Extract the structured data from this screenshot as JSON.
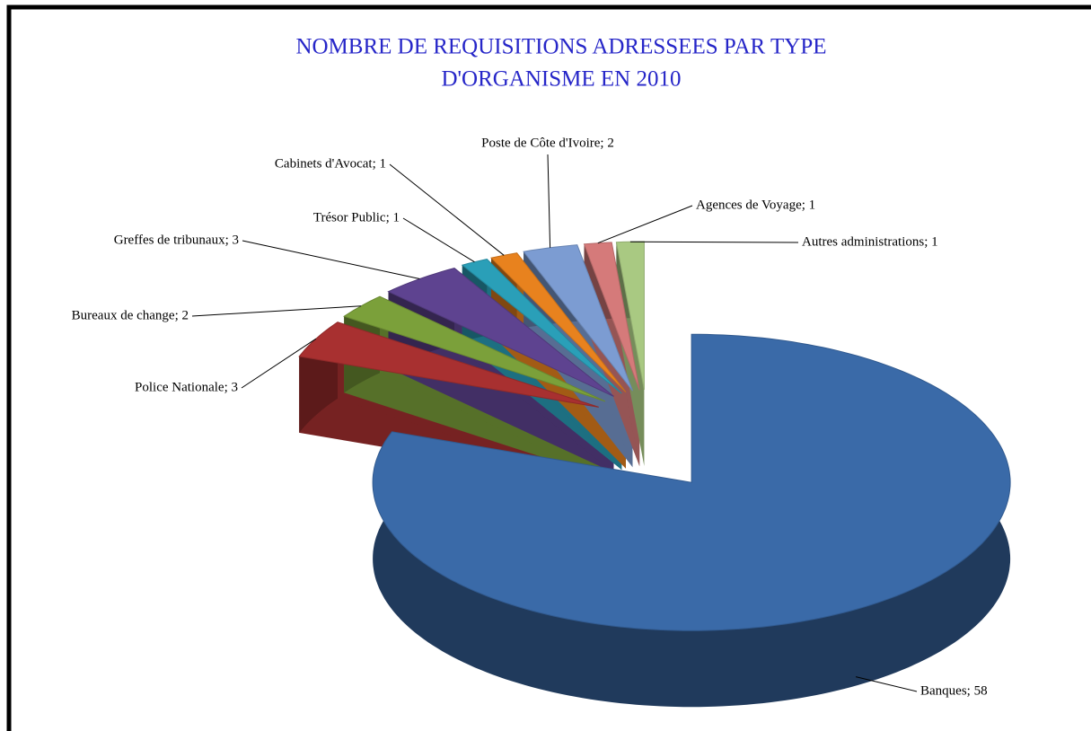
{
  "chart_data": {
    "type": "pie",
    "title": [
      "NOMBRE DE REQUISITIONS ADRESSEES PAR TYPE",
      "D'ORGANISME EN 2010"
    ],
    "categories": [
      "Banques",
      "Police Nationale",
      "Bureaux de change",
      "Greffes de tribunaux",
      "Trésor Public",
      "Cabinets d'Avocat",
      "Poste de Côte d'Ivoire",
      "Agences de Voyage",
      "Autres administrations"
    ],
    "values": [
      58,
      3,
      2,
      3,
      1,
      1,
      2,
      1,
      1
    ],
    "value_labels": [
      "Banques; 58",
      "Police Nationale; 3",
      "Bureaux de change; 2",
      "Greffes de tribunaux; 3",
      "Trésor Public; 1",
      "Cabinets d'Avocat; 1",
      "Poste de Côte d'Ivoire; 2",
      "Agences de Voyage; 1",
      "Autres administrations; 1"
    ],
    "colors": [
      "#3a6aa8",
      "#a83030",
      "#7ba03a",
      "#5e4390",
      "#2a9fb8",
      "#e8821e",
      "#7c9cd2",
      "#d57a7a",
      "#a9c982"
    ]
  }
}
